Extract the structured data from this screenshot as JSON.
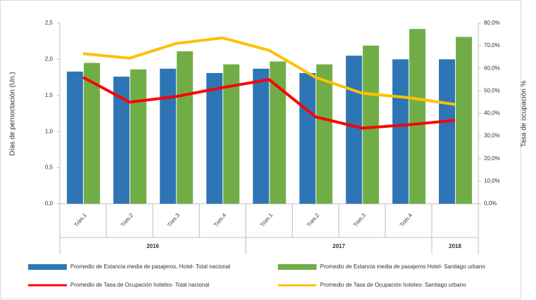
{
  "chart_data": {
    "type": "bar_line",
    "ylabel": "Días de pernoctación  (Un.)",
    "y2label": "Tasa de ocupación  %",
    "categories": [
      "Trim.1",
      "Trim.2",
      "Trim.3",
      "Trim.4",
      "Trim.1",
      "Trim.2",
      "Trim.3",
      "Trim.4",
      null
    ],
    "groups": [
      "2016",
      "2016",
      "2016",
      "2016",
      "2017",
      "2017",
      "2017",
      "2017",
      "2018"
    ],
    "series": [
      {
        "name": "Promedio de Estancia media de pasajeros, Hotel- Total nacional",
        "type": "bar",
        "color": "#2e75b6",
        "values": [
          1.83,
          1.76,
          1.87,
          1.81,
          1.87,
          1.81,
          2.05,
          2.0,
          2.0
        ]
      },
      {
        "name": "Promedio de Estancia media de pasajeros Hotel- Santiago urbano",
        "type": "bar",
        "color": "#70ad47",
        "values": [
          1.95,
          1.86,
          2.11,
          1.93,
          1.97,
          1.93,
          2.19,
          2.42,
          2.31
        ]
      },
      {
        "name": "Promedio de Tasa de Ocupación hoteles- Total nacional",
        "type": "line",
        "axis": "y2",
        "color": "#ff0000",
        "values": [
          56,
          45,
          47.5,
          51.5,
          55,
          38.5,
          33.5,
          35,
          37
        ]
      },
      {
        "name": "Promedio de Tasa de Ocupación hoteles- Santiago urbano",
        "type": "line",
        "axis": "y2",
        "color": "#ffc000",
        "values": [
          66.5,
          64.5,
          71,
          73.5,
          68,
          56,
          49,
          47,
          44
        ]
      }
    ],
    "ylim": [
      0,
      2.5
    ],
    "yticks": [
      {
        "value": 0,
        "label": "0,0"
      },
      {
        "value": 0.5,
        "label": "0,5"
      },
      {
        "value": 1,
        "label": "1,0"
      },
      {
        "value": 1.5,
        "label": "1,5"
      },
      {
        "value": 2,
        "label": "2,0"
      },
      {
        "value": 2.5,
        "label": "2,5"
      }
    ],
    "y2lim": [
      0,
      80
    ],
    "y2ticks": [
      {
        "value": 0,
        "label": "0,0%"
      },
      {
        "value": 10,
        "label": "10,0%"
      },
      {
        "value": 20,
        "label": "20,0%"
      },
      {
        "value": 30,
        "label": "30,0%"
      },
      {
        "value": 40,
        "label": "40,0%"
      },
      {
        "value": 50,
        "label": "50,0%"
      },
      {
        "value": 60,
        "label": "60,0%"
      },
      {
        "value": 70,
        "label": "70,0%"
      },
      {
        "value": 80,
        "label": "80,0%"
      }
    ]
  }
}
